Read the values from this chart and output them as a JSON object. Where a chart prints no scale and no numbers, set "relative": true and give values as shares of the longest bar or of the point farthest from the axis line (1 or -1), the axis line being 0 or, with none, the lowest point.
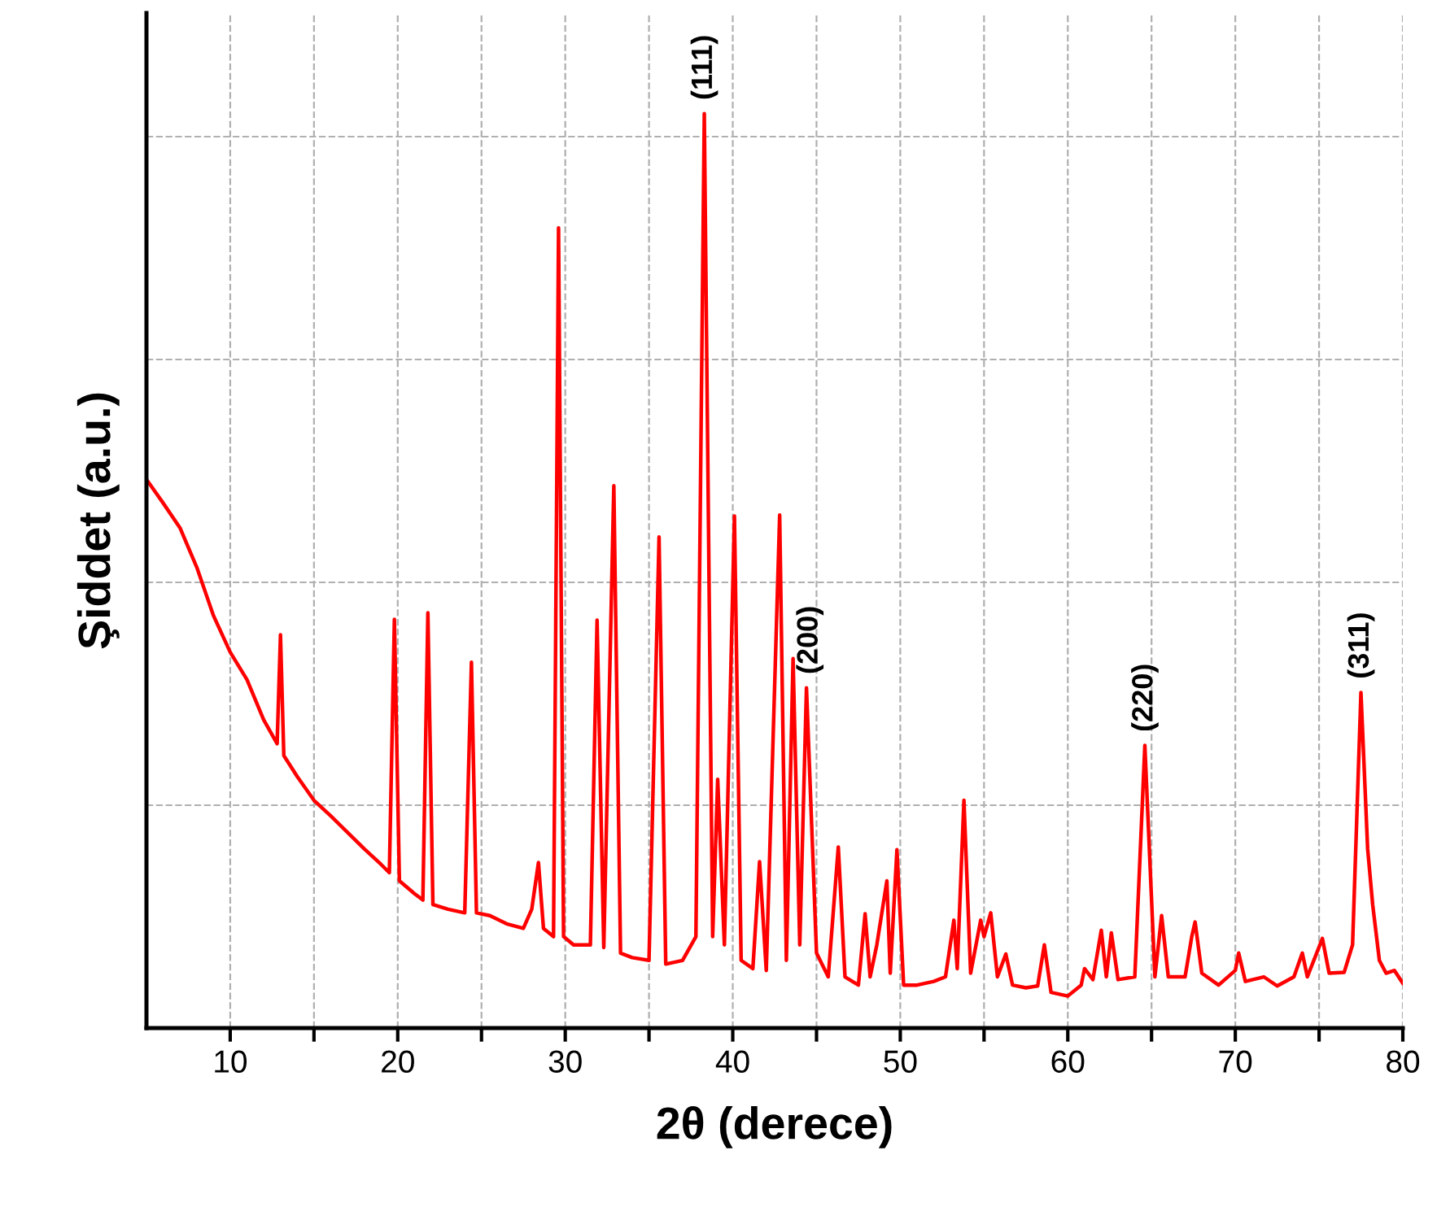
{
  "chart_data": {
    "type": "line",
    "xlabel": "2θ (derece)",
    "ylabel": "Şiddet (a.u.)",
    "relative": true,
    "grid": true,
    "legend": false,
    "marker": "none",
    "line_style": "solid",
    "xlim": [
      5,
      80
    ],
    "xticks": [
      10,
      {
        "value": 15,
        "label": null
      },
      20,
      {
        "value": 25,
        "label": null
      },
      30,
      {
        "value": 35,
        "label": null
      },
      40,
      {
        "value": 45,
        "label": null
      },
      50,
      {
        "value": 55,
        "label": null
      },
      60,
      {
        "value": 65,
        "label": null
      },
      70,
      {
        "value": 75,
        "label": null
      },
      80
    ],
    "series": [
      {
        "color": "#ff0000",
        "x": [
          5,
          6,
          7,
          8,
          9,
          10,
          11,
          12,
          12.8,
          13.0,
          13.2,
          14,
          15,
          16,
          17,
          18,
          19,
          19.5,
          19.8,
          20.1,
          21,
          21.5,
          21.8,
          22.1,
          23,
          24,
          24.4,
          24.7,
          25.5,
          26.5,
          27.5,
          28.0,
          28.4,
          28.7,
          29.3,
          29.6,
          29.9,
          30.5,
          31.5,
          31.9,
          32.3,
          32.9,
          33.3,
          34,
          35,
          35.6,
          36,
          37,
          37.8,
          38.3,
          38.8,
          39.1,
          39.5,
          40.1,
          40.5,
          41.2,
          41.6,
          42.0,
          42.8,
          43.2,
          43.6,
          44.0,
          44.4,
          45.0,
          45.7,
          46.3,
          46.7,
          47.5,
          47.9,
          48.2,
          48.6,
          49.2,
          49.4,
          49.8,
          50.2,
          51,
          52,
          52.7,
          53.2,
          53.4,
          53.8,
          54.2,
          54.8,
          55.0,
          55.4,
          55.8,
          56.3,
          56.7,
          57.5,
          58.2,
          58.6,
          59.0,
          60,
          60.8,
          61.0,
          61.5,
          62.0,
          62.3,
          62.6,
          63.0,
          64.0,
          64.6,
          65.2,
          65.6,
          66.0,
          67.0,
          67.4,
          67.6,
          68.0,
          69,
          70.0,
          70.2,
          70.6,
          71.7,
          72.5,
          73.5,
          74.0,
          74.3,
          75.2,
          75.6,
          76.5,
          77.0,
          77.5,
          77.9,
          78.2,
          78.6,
          79,
          79.5,
          80
        ],
        "values": [
          0.6,
          0.574,
          0.547,
          0.504,
          0.451,
          0.411,
          0.381,
          0.337,
          0.311,
          0.43,
          0.298,
          0.275,
          0.249,
          0.232,
          0.214,
          0.196,
          0.179,
          0.17,
          0.447,
          0.161,
          0.147,
          0.14,
          0.454,
          0.135,
          0.13,
          0.126,
          0.4,
          0.126,
          0.123,
          0.114,
          0.109,
          0.13,
          0.181,
          0.109,
          0.1,
          0.875,
          0.1,
          0.091,
          0.091,
          0.446,
          0.088,
          0.593,
          0.082,
          0.077,
          0.074,
          0.537,
          0.07,
          0.074,
          0.1,
          1.0,
          0.1,
          0.272,
          0.091,
          0.56,
          0.074,
          0.065,
          0.182,
          0.063,
          0.561,
          0.074,
          0.404,
          0.091,
          0.372,
          0.082,
          0.056,
          0.198,
          0.056,
          0.047,
          0.125,
          0.056,
          0.091,
          0.161,
          0.06,
          0.195,
          0.047,
          0.047,
          0.051,
          0.056,
          0.118,
          0.065,
          0.249,
          0.06,
          0.118,
          0.1,
          0.126,
          0.056,
          0.081,
          0.047,
          0.044,
          0.046,
          0.091,
          0.039,
          0.035,
          0.047,
          0.065,
          0.053,
          0.107,
          0.056,
          0.104,
          0.053,
          0.056,
          0.309,
          0.056,
          0.123,
          0.056,
          0.056,
          0.1,
          0.116,
          0.06,
          0.047,
          0.063,
          0.082,
          0.051,
          0.056,
          0.046,
          0.056,
          0.082,
          0.056,
          0.098,
          0.06,
          0.061,
          0.091,
          0.367,
          0.196,
          0.135,
          0.074,
          0.06,
          0.063,
          0.049
        ]
      }
    ],
    "annotations": [
      {
        "text": "(111)",
        "x": 38.3,
        "y": 1.0
      },
      {
        "text": "(200)",
        "x": 44.6,
        "y": 0.372
      },
      {
        "text": "(220)",
        "x": 64.6,
        "y": 0.309
      },
      {
        "text": "(311)",
        "x": 77.5,
        "y": 0.367
      }
    ]
  }
}
